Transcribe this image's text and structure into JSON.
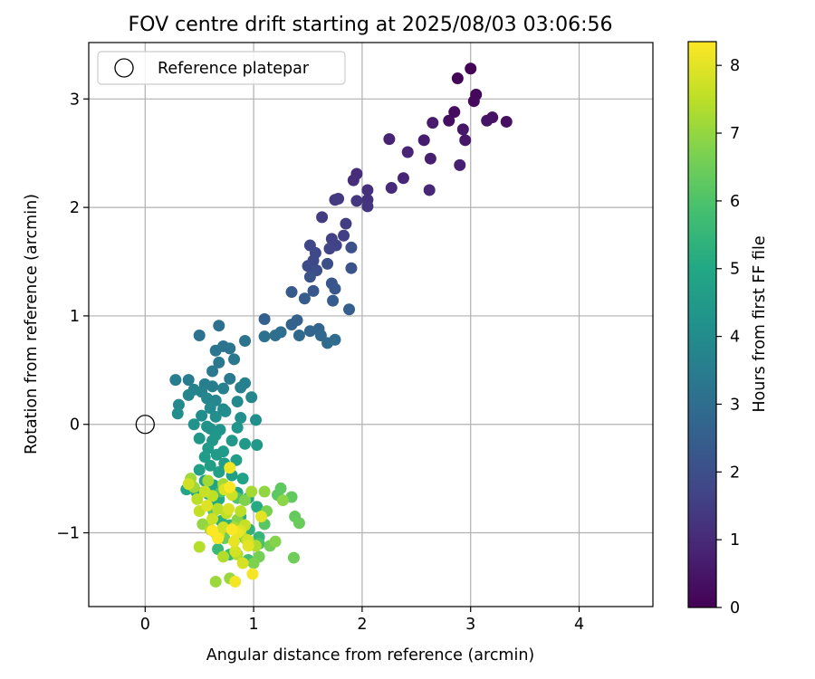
{
  "chart_data": {
    "type": "scatter",
    "title": "FOV centre drift starting at 2025/08/03 03:06:56",
    "xlabel": "Angular distance from reference (arcmin)",
    "ylabel": "Rotation from reference (arcmin)",
    "xlim": [
      -0.52,
      4.68
    ],
    "ylim": [
      -1.68,
      3.52
    ],
    "xticks": [
      0,
      1,
      2,
      3,
      4
    ],
    "yticks": [
      -1,
      0,
      1,
      2,
      3
    ],
    "xtick_labels": [
      "0",
      "1",
      "2",
      "3",
      "4"
    ],
    "ytick_labels": [
      "−1",
      "0",
      "1",
      "2",
      "3"
    ],
    "grid": true,
    "legend": {
      "position": "top-left",
      "label": "Reference platepar"
    },
    "reference_point": {
      "x": 0,
      "y": 0
    },
    "colorbar": {
      "label": "Hours from first FF file",
      "min": 0,
      "max": 8.35,
      "ticks": [
        0,
        1,
        2,
        3,
        4,
        5,
        6,
        7,
        8
      ],
      "tick_labels": [
        "0",
        "1",
        "2",
        "3",
        "4",
        "5",
        "6",
        "7",
        "8"
      ],
      "colormap": "viridis"
    },
    "points": [
      [
        3.0,
        3.28,
        0.05
      ],
      [
        2.88,
        3.19,
        0.1
      ],
      [
        3.05,
        3.04,
        0.15
      ],
      [
        3.03,
        2.98,
        0.2
      ],
      [
        2.85,
        2.88,
        0.25
      ],
      [
        2.8,
        2.8,
        0.3
      ],
      [
        3.33,
        2.79,
        0.35
      ],
      [
        3.2,
        2.83,
        0.4
      ],
      [
        3.15,
        2.8,
        0.45
      ],
      [
        2.93,
        2.72,
        0.5
      ],
      [
        2.95,
        2.62,
        0.55
      ],
      [
        2.65,
        2.78,
        0.6
      ],
      [
        2.57,
        2.62,
        0.65
      ],
      [
        2.63,
        2.45,
        0.7
      ],
      [
        2.9,
        2.39,
        0.75
      ],
      [
        2.25,
        2.63,
        0.8
      ],
      [
        2.42,
        2.51,
        0.85
      ],
      [
        2.38,
        2.27,
        0.9
      ],
      [
        2.62,
        2.16,
        0.95
      ],
      [
        2.27,
        2.18,
        1.0
      ],
      [
        1.95,
        2.31,
        1.05
      ],
      [
        1.92,
        2.25,
        1.1
      ],
      [
        2.05,
        2.16,
        1.15
      ],
      [
        2.05,
        2.07,
        1.2
      ],
      [
        2.05,
        2.01,
        1.25
      ],
      [
        1.95,
        2.06,
        1.3
      ],
      [
        1.78,
        2.08,
        1.35
      ],
      [
        1.75,
        2.07,
        1.4
      ],
      [
        1.63,
        1.91,
        1.45
      ],
      [
        1.85,
        1.85,
        1.5
      ],
      [
        1.83,
        1.74,
        1.55
      ],
      [
        1.72,
        1.71,
        1.6
      ],
      [
        1.76,
        1.65,
        1.65
      ],
      [
        1.7,
        1.62,
        1.7
      ],
      [
        1.52,
        1.65,
        1.75
      ],
      [
        1.57,
        1.58,
        1.8
      ],
      [
        1.55,
        1.51,
        1.85
      ],
      [
        1.5,
        1.46,
        1.9
      ],
      [
        1.58,
        1.42,
        1.95
      ],
      [
        1.68,
        1.48,
        2.0
      ],
      [
        1.9,
        1.63,
        2.05
      ],
      [
        1.9,
        1.44,
        2.1
      ],
      [
        1.52,
        1.36,
        2.15
      ],
      [
        1.72,
        1.3,
        2.2
      ],
      [
        1.75,
        1.25,
        2.25
      ],
      [
        1.55,
        1.23,
        2.3
      ],
      [
        1.35,
        1.22,
        2.35
      ],
      [
        1.47,
        1.16,
        2.4
      ],
      [
        1.73,
        1.14,
        2.45
      ],
      [
        1.88,
        1.06,
        2.5
      ],
      [
        1.1,
        0.97,
        2.55
      ],
      [
        1.4,
        0.96,
        2.6
      ],
      [
        1.35,
        0.92,
        2.65
      ],
      [
        1.6,
        0.88,
        2.7
      ],
      [
        1.52,
        0.86,
        2.75
      ],
      [
        1.62,
        0.82,
        2.8
      ],
      [
        1.42,
        0.82,
        2.85
      ],
      [
        1.68,
        0.75,
        2.9
      ],
      [
        1.75,
        0.78,
        2.95
      ],
      [
        1.25,
        0.85,
        3.0
      ],
      [
        1.2,
        0.82,
        3.05
      ],
      [
        1.1,
        0.81,
        3.1
      ],
      [
        0.68,
        0.91,
        3.12
      ],
      [
        0.5,
        0.82,
        3.15
      ],
      [
        0.92,
        0.77,
        3.18
      ],
      [
        0.72,
        0.72,
        3.2
      ],
      [
        0.78,
        0.7,
        3.25
      ],
      [
        0.65,
        0.68,
        3.28
      ],
      [
        0.82,
        0.6,
        3.3
      ],
      [
        0.68,
        0.57,
        3.35
      ],
      [
        0.62,
        0.49,
        3.38
      ],
      [
        0.78,
        0.42,
        3.4
      ],
      [
        0.4,
        0.41,
        3.45
      ],
      [
        0.28,
        0.41,
        3.5
      ],
      [
        0.55,
        0.37,
        3.52
      ],
      [
        0.62,
        0.35,
        3.55
      ],
      [
        0.72,
        0.33,
        3.6
      ],
      [
        0.92,
        0.38,
        3.62
      ],
      [
        0.88,
        0.34,
        3.65
      ],
      [
        0.45,
        0.32,
        3.7
      ],
      [
        0.52,
        0.3,
        3.72
      ],
      [
        0.4,
        0.27,
        3.75
      ],
      [
        0.98,
        0.25,
        3.8
      ],
      [
        0.57,
        0.24,
        3.82
      ],
      [
        0.65,
        0.22,
        3.85
      ],
      [
        0.85,
        0.21,
        3.9
      ],
      [
        0.31,
        0.18,
        3.92
      ],
      [
        0.6,
        0.15,
        3.95
      ],
      [
        0.72,
        0.14,
        3.98
      ],
      [
        0.74,
        0.12,
        4.0
      ],
      [
        0.3,
        0.1,
        4.05
      ],
      [
        0.52,
        0.08,
        4.08
      ],
      [
        0.65,
        0.07,
        4.1
      ],
      [
        0.88,
        0.06,
        4.12
      ],
      [
        1.02,
        0.04,
        4.15
      ],
      [
        0.45,
        0.0,
        4.2
      ],
      [
        0.57,
        -0.02,
        4.22
      ],
      [
        0.6,
        -0.04,
        4.25
      ],
      [
        0.69,
        -0.05,
        4.28
      ],
      [
        0.85,
        -0.03,
        4.3
      ],
      [
        0.65,
        -0.1,
        4.35
      ],
      [
        0.5,
        -0.13,
        4.38
      ],
      [
        0.62,
        -0.15,
        4.4
      ],
      [
        0.8,
        -0.15,
        4.42
      ],
      [
        0.92,
        -0.18,
        4.45
      ],
      [
        1.03,
        -0.19,
        4.48
      ],
      [
        0.58,
        -0.22,
        4.5
      ],
      [
        0.72,
        -0.25,
        4.52
      ],
      [
        0.66,
        -0.28,
        4.55
      ],
      [
        0.55,
        -0.3,
        4.58
      ],
      [
        0.84,
        -0.33,
        4.6
      ],
      [
        0.73,
        -0.36,
        4.62
      ],
      [
        0.6,
        -0.38,
        4.65
      ],
      [
        0.5,
        -0.42,
        4.68
      ],
      [
        0.68,
        -0.44,
        4.7
      ],
      [
        0.8,
        -0.47,
        4.72
      ],
      [
        0.9,
        -0.5,
        4.75
      ],
      [
        0.55,
        -0.52,
        4.78
      ],
      [
        0.63,
        -0.56,
        4.8
      ],
      [
        0.73,
        -0.58,
        4.82
      ],
      [
        0.38,
        -0.6,
        4.85
      ],
      [
        0.47,
        -0.62,
        4.88
      ],
      [
        0.58,
        -0.64,
        4.9
      ],
      [
        0.85,
        -0.63,
        4.95
      ],
      [
        0.95,
        -0.68,
        5.0
      ],
      [
        0.68,
        -0.69,
        5.02
      ],
      [
        0.61,
        -0.74,
        5.05
      ],
      [
        1.03,
        -0.76,
        5.1
      ],
      [
        0.75,
        -0.81,
        5.15
      ],
      [
        0.88,
        -0.85,
        5.2
      ],
      [
        0.7,
        -0.89,
        5.25
      ],
      [
        0.78,
        -0.93,
        5.3
      ],
      [
        0.96,
        -0.97,
        5.35
      ],
      [
        0.65,
        -1.0,
        5.4
      ],
      [
        0.88,
        -1.03,
        5.45
      ],
      [
        1.05,
        -1.04,
        5.5
      ],
      [
        0.67,
        -1.15,
        5.6
      ],
      [
        0.78,
        -1.2,
        5.7
      ],
      [
        0.95,
        -1.25,
        5.8
      ],
      [
        1.05,
        -1.1,
        5.9
      ],
      [
        0.7,
        -0.62,
        6.0
      ],
      [
        0.85,
        -0.68,
        6.05
      ],
      [
        0.63,
        -0.8,
        6.1
      ],
      [
        1.1,
        -0.92,
        6.15
      ],
      [
        1.22,
        -0.65,
        6.2
      ],
      [
        1.25,
        -0.59,
        6.25
      ],
      [
        1.35,
        -0.67,
        6.3
      ],
      [
        1.38,
        -0.85,
        6.35
      ],
      [
        1.42,
        -0.91,
        6.4
      ],
      [
        0.73,
        -1.05,
        6.45
      ],
      [
        1.37,
        -1.23,
        6.5
      ],
      [
        1.15,
        -1.12,
        6.55
      ],
      [
        1.05,
        -1.22,
        6.6
      ],
      [
        1.12,
        -0.8,
        6.65
      ],
      [
        1.0,
        -1.28,
        6.7
      ],
      [
        0.92,
        -0.7,
        6.75
      ],
      [
        1.2,
        -1.08,
        6.8
      ],
      [
        0.85,
        -0.88,
        6.85
      ],
      [
        1.27,
        -0.7,
        6.9
      ],
      [
        1.1,
        -0.62,
        6.95
      ],
      [
        0.53,
        -0.92,
        7.0
      ],
      [
        0.78,
        -1.42,
        7.05
      ],
      [
        0.65,
        -1.45,
        7.1
      ],
      [
        0.45,
        -0.58,
        7.12
      ],
      [
        0.42,
        -0.5,
        7.15
      ],
      [
        0.58,
        -0.52,
        7.18
      ],
      [
        0.72,
        -0.55,
        7.2
      ],
      [
        0.98,
        -0.62,
        7.22
      ],
      [
        0.82,
        -0.95,
        7.25
      ],
      [
        0.6,
        -0.97,
        7.28
      ],
      [
        0.93,
        -1.06,
        7.3
      ],
      [
        1.02,
        -1.12,
        7.35
      ],
      [
        0.72,
        -1.22,
        7.38
      ],
      [
        0.5,
        -1.13,
        7.4
      ],
      [
        0.85,
        -1.2,
        7.42
      ],
      [
        0.67,
        -0.78,
        7.45
      ],
      [
        0.48,
        -0.69,
        7.48
      ],
      [
        0.88,
        -0.8,
        7.5
      ],
      [
        0.62,
        -0.66,
        7.52
      ],
      [
        0.75,
        -0.82,
        7.55
      ],
      [
        0.5,
        -0.8,
        7.6
      ],
      [
        0.92,
        -0.93,
        7.62
      ],
      [
        0.55,
        -0.62,
        7.65
      ],
      [
        0.8,
        -0.65,
        7.68
      ],
      [
        0.62,
        -0.87,
        7.7
      ],
      [
        0.72,
        -0.95,
        7.72
      ],
      [
        0.4,
        -0.55,
        7.75
      ],
      [
        0.68,
        -1.02,
        7.78
      ],
      [
        0.95,
        -1.07,
        7.8
      ],
      [
        0.83,
        -1.17,
        7.82
      ],
      [
        0.9,
        -1.28,
        7.85
      ],
      [
        0.77,
        -0.78,
        7.88
      ],
      [
        0.88,
        -0.98,
        7.9
      ],
      [
        0.73,
        -0.6,
        7.92
      ],
      [
        0.57,
        -0.75,
        7.95
      ],
      [
        1.07,
        -0.85,
        7.98
      ],
      [
        0.95,
        -1.12,
        8.0
      ],
      [
        0.82,
        -1.08,
        8.05
      ],
      [
        0.85,
        -1.0,
        8.1
      ],
      [
        0.78,
        -0.4,
        8.15
      ],
      [
        0.83,
        -1.45,
        8.2
      ],
      [
        0.99,
        -1.38,
        8.25
      ],
      [
        0.78,
        -0.58,
        8.3
      ],
      [
        0.8,
        -0.97,
        8.32
      ],
      [
        0.67,
        -1.05,
        8.34
      ],
      [
        0.62,
        -0.98,
        8.35
      ]
    ]
  }
}
